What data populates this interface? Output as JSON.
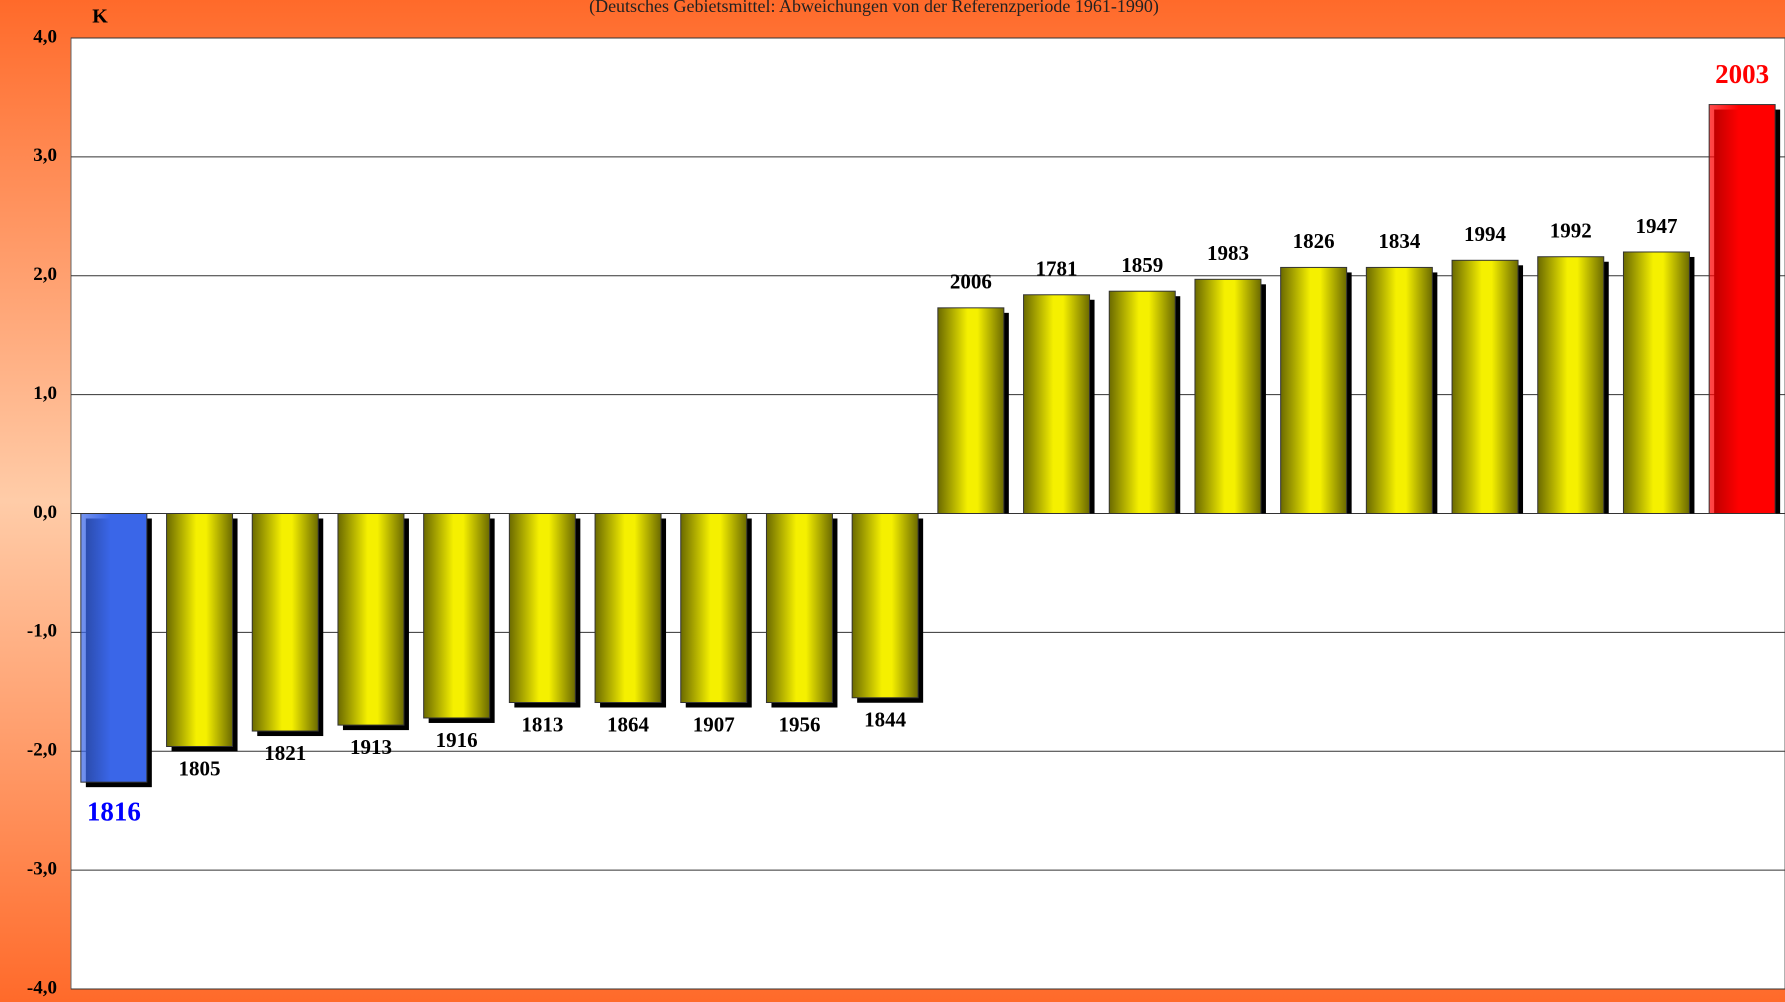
{
  "chart_data": {
    "type": "bar",
    "subtitle": "(Deutsches Gebietsmittel: Abweichungen von der Referenzperiode 1961-1990)",
    "y_label": "K",
    "categories": [
      "1816",
      "1805",
      "1821",
      "1913",
      "1916",
      "1813",
      "1864",
      "1907",
      "1956",
      "1844",
      "2006",
      "1781",
      "1859",
      "1983",
      "1826",
      "1834",
      "1994",
      "1992",
      "1947",
      "2003"
    ],
    "values": [
      -2.26,
      -1.96,
      -1.83,
      -1.78,
      -1.72,
      -1.59,
      -1.59,
      -1.59,
      -1.59,
      -1.55,
      1.73,
      1.84,
      1.87,
      1.97,
      2.07,
      2.07,
      2.13,
      2.16,
      2.2,
      3.44
    ],
    "colors": [
      "#3a66e8",
      "#f5f000",
      "#f5f000",
      "#f5f000",
      "#f5f000",
      "#f5f000",
      "#f5f000",
      "#f5f000",
      "#f5f000",
      "#f5f000",
      "#f5f000",
      "#f5f000",
      "#f5f000",
      "#f5f000",
      "#f5f000",
      "#f5f000",
      "#f5f000",
      "#f5f000",
      "#f5f000",
      "#ff0000"
    ],
    "label_colors": [
      "#0000ff",
      "#000000",
      "#000000",
      "#000000",
      "#000000",
      "#000000",
      "#000000",
      "#000000",
      "#000000",
      "#000000",
      "#000000",
      "#000000",
      "#000000",
      "#000000",
      "#000000",
      "#000000",
      "#000000",
      "#000000",
      "#000000",
      "#ff0000"
    ],
    "ylim": [
      -4,
      4
    ],
    "yticks": [
      {
        "value": -4,
        "label": "-4,0"
      },
      {
        "value": -3,
        "label": "-3,0"
      },
      {
        "value": -2,
        "label": "-2,0"
      },
      {
        "value": -1,
        "label": "-1,0"
      },
      {
        "value": 0,
        "label": "0,0"
      },
      {
        "value": 1,
        "label": "1,0"
      },
      {
        "value": 2,
        "label": "2,0"
      },
      {
        "value": 3,
        "label": "3,0"
      },
      {
        "value": 4,
        "label": "4,0"
      }
    ],
    "grid": true
  }
}
